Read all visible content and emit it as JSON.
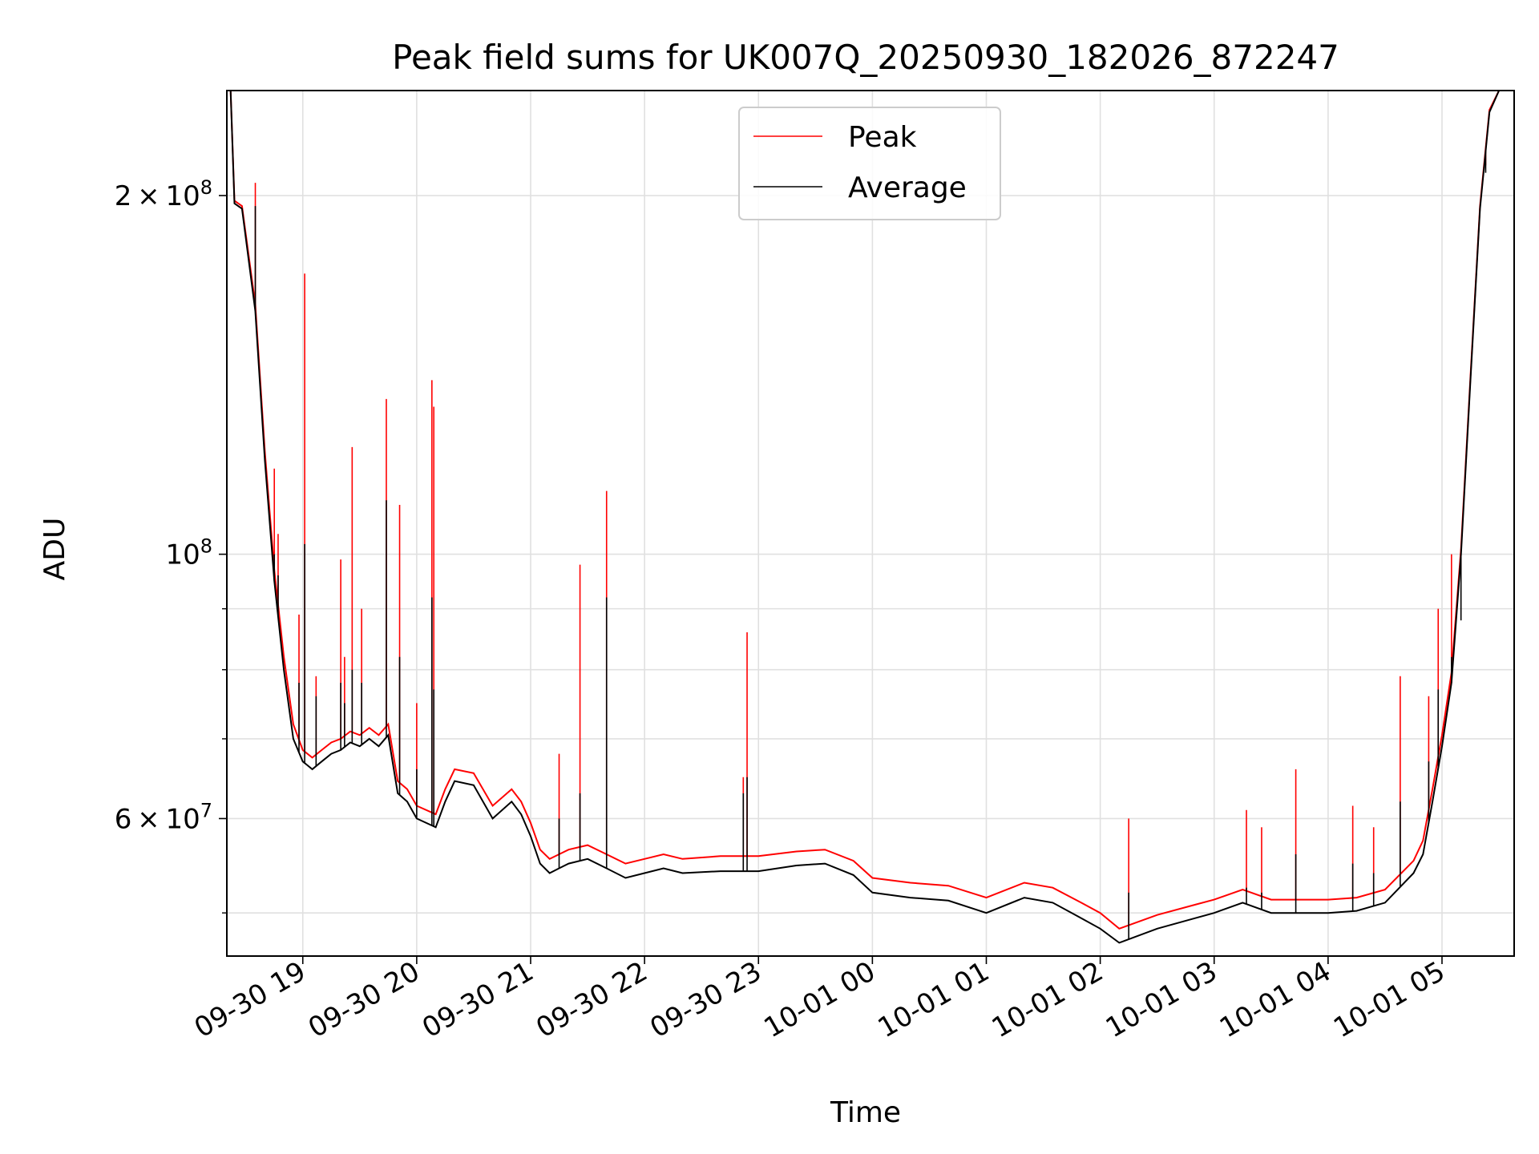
{
  "chart_data": {
    "type": "line",
    "title": "Peak field sums for UK007Q_20250930_182026_872247",
    "xlabel": "Time",
    "ylabel": "ADU",
    "xlim": [
      "2025-09-30 18:20",
      "2025-10-01 05:38"
    ],
    "ylim": [
      46000000,
      245000000
    ],
    "yscale": "log",
    "grid": true,
    "legend_position": "top-center",
    "x_ticks": [
      {
        "value": "2025-09-30 19:00",
        "label": "09-30 19"
      },
      {
        "value": "2025-09-30 20:00",
        "label": "09-30 20"
      },
      {
        "value": "2025-09-30 21:00",
        "label": "09-30 21"
      },
      {
        "value": "2025-09-30 22:00",
        "label": "09-30 22"
      },
      {
        "value": "2025-09-30 23:00",
        "label": "09-30 23"
      },
      {
        "value": "2025-10-01 00:00",
        "label": "10-01 00"
      },
      {
        "value": "2025-10-01 01:00",
        "label": "10-01 01"
      },
      {
        "value": "2025-10-01 02:00",
        "label": "10-01 02"
      },
      {
        "value": "2025-10-01 03:00",
        "label": "10-01 03"
      },
      {
        "value": "2025-10-01 04:00",
        "label": "10-01 04"
      },
      {
        "value": "2025-10-01 05:00",
        "label": "10-01 05"
      }
    ],
    "y_major_ticks": [
      {
        "value": 60000000,
        "mantissa": "6",
        "exp": "7"
      },
      {
        "value": 100000000,
        "mantissa": "",
        "exp": "8"
      },
      {
        "value": 200000000,
        "mantissa": "2",
        "exp": "8"
      }
    ],
    "y_minor_ticks": [
      50000000,
      70000000,
      80000000,
      90000000
    ],
    "series": [
      {
        "name": "Average",
        "color": "#000000",
        "x": [
          "2025-09-30 18:20",
          "2025-09-30 18:22",
          "2025-09-30 18:24",
          "2025-09-30 18:28",
          "2025-09-30 18:35",
          "2025-09-30 18:40",
          "2025-09-30 18:45",
          "2025-09-30 18:50",
          "2025-09-30 18:55",
          "2025-09-30 19:00",
          "2025-09-30 19:05",
          "2025-09-30 19:10",
          "2025-09-30 19:15",
          "2025-09-30 19:20",
          "2025-09-30 19:25",
          "2025-09-30 19:30",
          "2025-09-30 19:35",
          "2025-09-30 19:40",
          "2025-09-30 19:45",
          "2025-09-30 19:50",
          "2025-09-30 19:55",
          "2025-09-30 20:00",
          "2025-09-30 20:10",
          "2025-09-30 20:15",
          "2025-09-30 20:20",
          "2025-09-30 20:30",
          "2025-09-30 20:40",
          "2025-09-30 20:50",
          "2025-09-30 20:55",
          "2025-09-30 21:00",
          "2025-09-30 21:05",
          "2025-09-30 21:10",
          "2025-09-30 21:15",
          "2025-09-30 21:20",
          "2025-09-30 21:30",
          "2025-09-30 21:40",
          "2025-09-30 21:50",
          "2025-09-30 22:00",
          "2025-09-30 22:10",
          "2025-09-30 22:20",
          "2025-09-30 22:40",
          "2025-09-30 23:00",
          "2025-09-30 23:20",
          "2025-09-30 23:35",
          "2025-09-30 23:50",
          "2025-10-01 00:00",
          "2025-10-01 00:20",
          "2025-10-01 00:40",
          "2025-10-01 01:00",
          "2025-10-01 01:20",
          "2025-10-01 01:35",
          "2025-10-01 01:50",
          "2025-10-01 02:00",
          "2025-10-01 02:10",
          "2025-10-01 02:30",
          "2025-10-01 02:50",
          "2025-10-01 03:00",
          "2025-10-01 03:15",
          "2025-10-01 03:30",
          "2025-10-01 03:50",
          "2025-10-01 04:00",
          "2025-10-01 04:15",
          "2025-10-01 04:30",
          "2025-10-01 04:45",
          "2025-10-01 04:50",
          "2025-10-01 04:55",
          "2025-10-01 05:00",
          "2025-10-01 05:05",
          "2025-10-01 05:10",
          "2025-10-01 05:15",
          "2025-10-01 05:20",
          "2025-10-01 05:25",
          "2025-10-01 05:30",
          "2025-10-01 05:38"
        ],
        "y": [
          245000000,
          245000000,
          197000000,
          195000000,
          160000000,
          120000000,
          95000000,
          80000000,
          70000000,
          67000000,
          66000000,
          67000000,
          68000000,
          68500000,
          69500000,
          69000000,
          70000000,
          69000000,
          70500000,
          63000000,
          62000000,
          60000000,
          59000000,
          62000000,
          64500000,
          64000000,
          60000000,
          62000000,
          60500000,
          58000000,
          55000000,
          54000000,
          54500000,
          55000000,
          55500000,
          54500000,
          53500000,
          54000000,
          54500000,
          54000000,
          54200000,
          54200000,
          54800000,
          55000000,
          53800000,
          52000000,
          51500000,
          51200000,
          50000000,
          51500000,
          51000000,
          49500000,
          48500000,
          47200000,
          48500000,
          49500000,
          50000000,
          51000000,
          50000000,
          50000000,
          50000000,
          50200000,
          51000000,
          54000000,
          56000000,
          62000000,
          69000000,
          78000000,
          100000000,
          140000000,
          195000000,
          235000000,
          245000000,
          245000000
        ]
      },
      {
        "name": "Peak",
        "color": "#ff0000",
        "x": [
          "2025-09-30 18:20",
          "2025-09-30 18:22",
          "2025-09-30 18:24",
          "2025-09-30 18:28",
          "2025-09-30 18:35",
          "2025-09-30 18:40",
          "2025-09-30 18:45",
          "2025-09-30 18:50",
          "2025-09-30 18:55",
          "2025-09-30 19:00",
          "2025-09-30 19:05",
          "2025-09-30 19:10",
          "2025-09-30 19:15",
          "2025-09-30 19:20",
          "2025-09-30 19:25",
          "2025-09-30 19:30",
          "2025-09-30 19:35",
          "2025-09-30 19:40",
          "2025-09-30 19:45",
          "2025-09-30 19:50",
          "2025-09-30 19:55",
          "2025-09-30 20:00",
          "2025-09-30 20:10",
          "2025-09-30 20:15",
          "2025-09-30 20:20",
          "2025-09-30 20:30",
          "2025-09-30 20:40",
          "2025-09-30 20:50",
          "2025-09-30 20:55",
          "2025-09-30 21:00",
          "2025-09-30 21:05",
          "2025-09-30 21:10",
          "2025-09-30 21:15",
          "2025-09-30 21:20",
          "2025-09-30 21:30",
          "2025-09-30 21:40",
          "2025-09-30 21:50",
          "2025-09-30 22:00",
          "2025-09-30 22:10",
          "2025-09-30 22:20",
          "2025-09-30 22:40",
          "2025-09-30 23:00",
          "2025-09-30 23:20",
          "2025-09-30 23:35",
          "2025-09-30 23:50",
          "2025-10-01 00:00",
          "2025-10-01 00:20",
          "2025-10-01 00:40",
          "2025-10-01 01:00",
          "2025-10-01 01:20",
          "2025-10-01 01:35",
          "2025-10-01 01:50",
          "2025-10-01 02:00",
          "2025-10-01 02:10",
          "2025-10-01 02:30",
          "2025-10-01 02:50",
          "2025-10-01 03:00",
          "2025-10-01 03:15",
          "2025-10-01 03:30",
          "2025-10-01 03:50",
          "2025-10-01 04:00",
          "2025-10-01 04:15",
          "2025-10-01 04:30",
          "2025-10-01 04:45",
          "2025-10-01 04:50",
          "2025-10-01 04:55",
          "2025-10-01 05:00",
          "2025-10-01 05:05",
          "2025-10-01 05:10",
          "2025-10-01 05:15",
          "2025-10-01 05:20",
          "2025-10-01 05:25",
          "2025-10-01 05:30",
          "2025-10-01 05:38"
        ],
        "y": [
          245000000,
          245000000,
          198000000,
          196000000,
          162000000,
          122000000,
          97000000,
          82000000,
          72000000,
          68500000,
          67500000,
          68500000,
          69500000,
          70000000,
          71000000,
          70500000,
          71500000,
          70500000,
          72000000,
          64500000,
          63500000,
          61500000,
          60500000,
          63500000,
          66000000,
          65500000,
          61500000,
          63500000,
          62000000,
          59500000,
          56500000,
          55500000,
          56000000,
          56500000,
          57000000,
          56000000,
          55000000,
          55500000,
          56000000,
          55500000,
          55800000,
          55800000,
          56300000,
          56500000,
          55300000,
          53500000,
          53000000,
          52700000,
          51500000,
          53000000,
          52500000,
          51000000,
          50000000,
          48500000,
          49800000,
          50800000,
          51300000,
          52300000,
          51300000,
          51300000,
          51300000,
          51500000,
          52300000,
          55300000,
          57500000,
          63500000,
          70500000,
          79500000,
          101000000,
          141000000,
          196000000,
          236000000,
          245000000,
          245000000
        ]
      }
    ],
    "spikes": [
      {
        "x": "2025-09-30 18:35",
        "peak": 205000000,
        "avg": 196000000
      },
      {
        "x": "2025-09-30 18:45",
        "peak": 118000000,
        "avg": 100000000
      },
      {
        "x": "2025-09-30 18:47",
        "peak": 104000000,
        "avg": 96000000
      },
      {
        "x": "2025-09-30 18:58",
        "peak": 89000000,
        "avg": 78000000
      },
      {
        "x": "2025-09-30 19:01",
        "peak": 172000000,
        "avg": 102000000
      },
      {
        "x": "2025-09-30 19:07",
        "peak": 79000000,
        "avg": 76000000
      },
      {
        "x": "2025-09-30 19:20",
        "peak": 99000000,
        "avg": 78000000
      },
      {
        "x": "2025-09-30 19:22",
        "peak": 82000000,
        "avg": 75000000
      },
      {
        "x": "2025-09-30 19:26",
        "peak": 123000000,
        "avg": 80000000
      },
      {
        "x": "2025-09-30 19:31",
        "peak": 90000000,
        "avg": 78000000
      },
      {
        "x": "2025-09-30 19:44",
        "peak": 135000000,
        "avg": 111000000
      },
      {
        "x": "2025-09-30 19:51",
        "peak": 110000000,
        "avg": 82000000
      },
      {
        "x": "2025-09-30 20:00",
        "peak": 75000000,
        "avg": 66000000
      },
      {
        "x": "2025-09-30 20:08",
        "peak": 140000000,
        "avg": 92000000
      },
      {
        "x": "2025-09-30 20:09",
        "peak": 133000000,
        "avg": 77000000
      },
      {
        "x": "2025-09-30 21:15",
        "peak": 68000000,
        "avg": 60000000
      },
      {
        "x": "2025-09-30 21:26",
        "peak": 98000000,
        "avg": 63000000
      },
      {
        "x": "2025-09-30 21:40",
        "peak": 113000000,
        "avg": 92000000
      },
      {
        "x": "2025-09-30 22:52",
        "peak": 65000000,
        "avg": 63000000
      },
      {
        "x": "2025-09-30 22:54",
        "peak": 86000000,
        "avg": 65000000
      },
      {
        "x": "2025-10-01 02:15",
        "peak": 60000000,
        "avg": 52000000
      },
      {
        "x": "2025-10-01 03:17",
        "peak": 61000000,
        "avg": 52500000
      },
      {
        "x": "2025-10-01 03:25",
        "peak": 59000000,
        "avg": 52000000
      },
      {
        "x": "2025-10-01 03:43",
        "peak": 66000000,
        "avg": 56000000
      },
      {
        "x": "2025-10-01 04:13",
        "peak": 61500000,
        "avg": 55000000
      },
      {
        "x": "2025-10-01 04:24",
        "peak": 59000000,
        "avg": 54000000
      },
      {
        "x": "2025-10-01 04:38",
        "peak": 79000000,
        "avg": 62000000
      },
      {
        "x": "2025-10-01 04:53",
        "peak": 76000000,
        "avg": 67000000
      },
      {
        "x": "2025-10-01 04:58",
        "peak": 90000000,
        "avg": 77000000
      },
      {
        "x": "2025-10-01 05:05",
        "peak": 100000000,
        "avg": 82000000
      },
      {
        "x": "2025-10-01 05:10",
        "peak": 97000000,
        "avg": 88000000
      },
      {
        "x": "2025-10-01 05:23",
        "peak": 212000000,
        "avg": 209000000
      }
    ]
  }
}
